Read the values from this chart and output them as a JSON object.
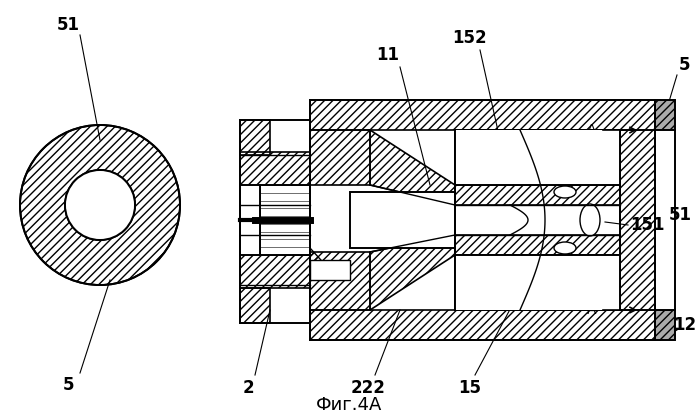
{
  "bg_color": "#ffffff",
  "line_color": "#000000",
  "title": "Фиг.4A",
  "title_fontsize": 13,
  "figsize": [
    6.99,
    4.2
  ],
  "dpi": 100
}
